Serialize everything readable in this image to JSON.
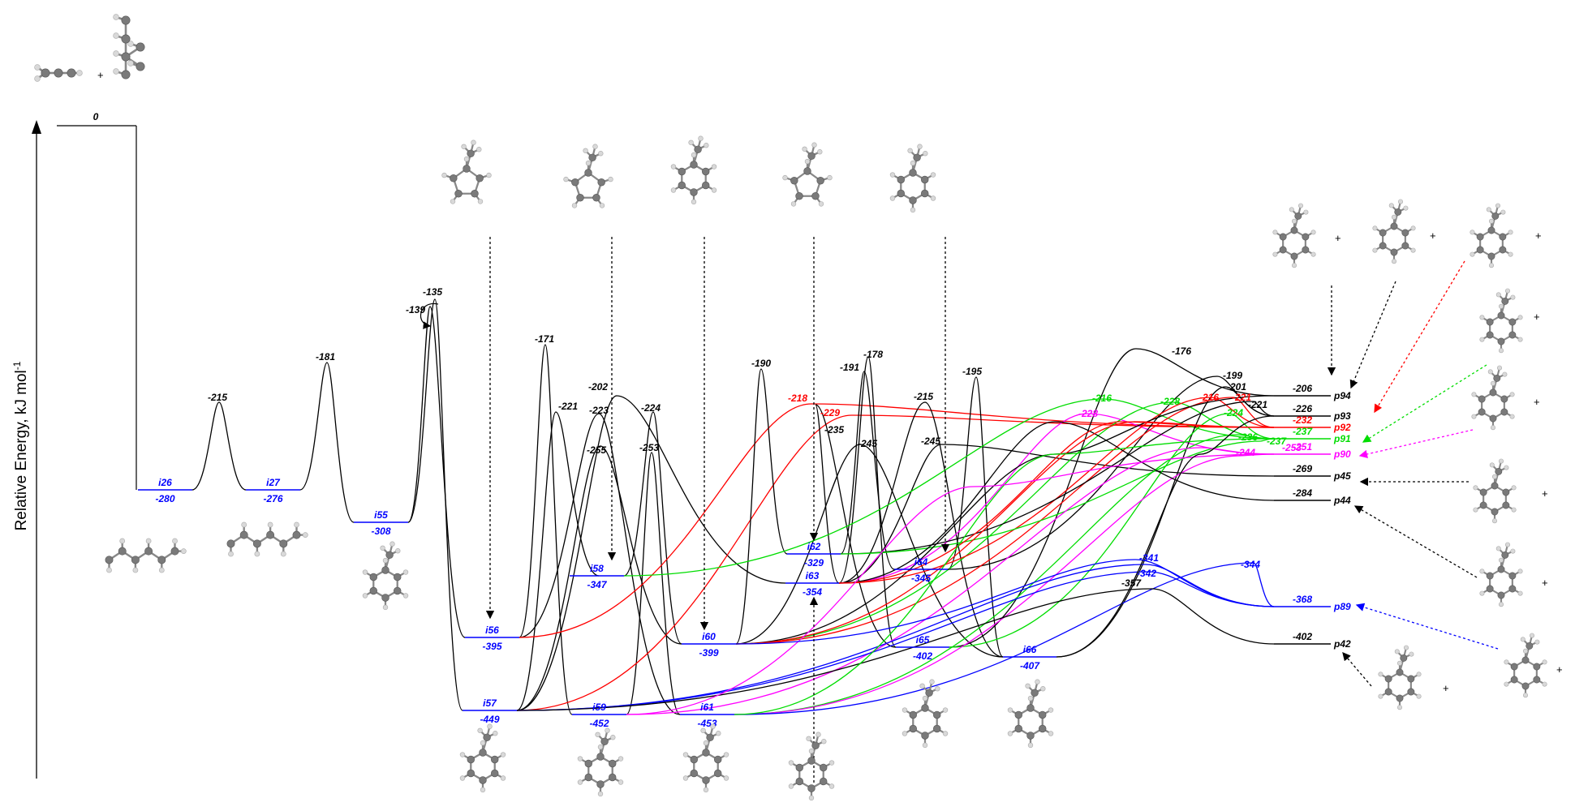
{
  "axis": {
    "ylabel": "Relative Energy, kJ mol",
    "ylabel_sup": "-1"
  },
  "colors": {
    "black": "#000000",
    "blue": "#0000ff",
    "red": "#ff0000",
    "green": "#00dd00",
    "magenta": "#ff00ff"
  },
  "reactant": {
    "energy": "0"
  },
  "intermediates": [
    {
      "id": "i26",
      "energy": "-280"
    },
    {
      "id": "i27",
      "energy": "-276"
    },
    {
      "id": "i55",
      "energy": "-308"
    },
    {
      "id": "i56",
      "energy": "-395"
    },
    {
      "id": "i57",
      "energy": "-449"
    },
    {
      "id": "i58",
      "energy": "-347"
    },
    {
      "id": "i59",
      "energy": "-452"
    },
    {
      "id": "i60",
      "energy": "-399"
    },
    {
      "id": "i61",
      "energy": "-453"
    },
    {
      "id": "i62",
      "energy": "-329"
    },
    {
      "id": "i63",
      "energy": "-354"
    },
    {
      "id": "i64",
      "energy": "-345"
    },
    {
      "id": "i65",
      "energy": "-402"
    },
    {
      "id": "i66",
      "energy": "-407"
    }
  ],
  "products": [
    {
      "id": "p94",
      "energy": "-206",
      "color": "black"
    },
    {
      "id": "p93",
      "energy": "-226",
      "color": "black"
    },
    {
      "id": "p92",
      "energy": "-232",
      "color": "red"
    },
    {
      "id": "p91",
      "energy": "-237",
      "color": "green"
    },
    {
      "id": "p90",
      "energy": "-251",
      "color": "magenta"
    },
    {
      "id": "p45",
      "energy": "-269",
      "color": "black"
    },
    {
      "id": "p44",
      "energy": "-284",
      "color": "black"
    },
    {
      "id": "p89",
      "energy": "-368",
      "color": "blue"
    },
    {
      "id": "p42",
      "energy": "-402",
      "color": "black"
    }
  ],
  "transition_states": [
    {
      "energy": "-215",
      "color": "black"
    },
    {
      "energy": "-181",
      "color": "black"
    },
    {
      "energy": "-139",
      "color": "black"
    },
    {
      "energy": "-135",
      "color": "black"
    },
    {
      "energy": "-171",
      "color": "black"
    },
    {
      "energy": "-221",
      "color": "black"
    },
    {
      "energy": "-202",
      "color": "black"
    },
    {
      "energy": "-223",
      "color": "black"
    },
    {
      "energy": "-224",
      "color": "black"
    },
    {
      "energy": "-255",
      "color": "black"
    },
    {
      "energy": "-253",
      "color": "black"
    },
    {
      "energy": "-218",
      "color": "red"
    },
    {
      "energy": "-229",
      "color": "red"
    },
    {
      "energy": "-190",
      "color": "black"
    },
    {
      "energy": "-235",
      "color": "black"
    },
    {
      "energy": "-191",
      "color": "black"
    },
    {
      "energy": "-178",
      "color": "black"
    },
    {
      "energy": "-245",
      "color": "black"
    },
    {
      "energy": "-215",
      "color": "black"
    },
    {
      "energy": "-245",
      "color": "black"
    },
    {
      "energy": "-195",
      "color": "black"
    },
    {
      "energy": "-176",
      "color": "black"
    },
    {
      "energy": "-216",
      "color": "green"
    },
    {
      "energy": "-228",
      "color": "magenta"
    },
    {
      "energy": "-228",
      "color": "green"
    },
    {
      "energy": "-199",
      "color": "black"
    },
    {
      "energy": "-201",
      "color": "black"
    },
    {
      "energy": "-216",
      "color": "red"
    },
    {
      "energy": "-221",
      "color": "red"
    },
    {
      "energy": "-221",
      "color": "black"
    },
    {
      "energy": "-224",
      "color": "green"
    },
    {
      "energy": "-236",
      "color": "green"
    },
    {
      "energy": "-237",
      "color": "green"
    },
    {
      "energy": "-253",
      "color": "magenta"
    },
    {
      "energy": "-244",
      "color": "magenta"
    },
    {
      "energy": "-341",
      "color": "blue"
    },
    {
      "energy": "-342",
      "color": "blue"
    },
    {
      "energy": "-344",
      "color": "blue"
    },
    {
      "energy": "-357",
      "color": "black"
    }
  ],
  "plus_sign": "+"
}
